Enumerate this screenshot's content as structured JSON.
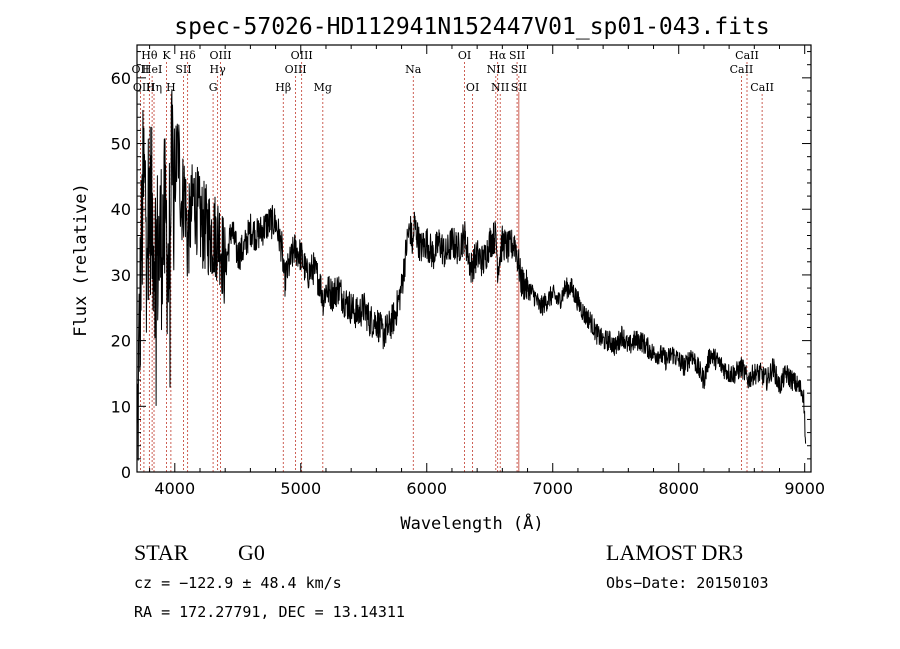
{
  "chart_data": {
    "type": "line",
    "title": "spec-57026-HD112941N152447V01_sp01-043.fits",
    "xlabel": "Wavelength (Å)",
    "ylabel": "Flux (relative)",
    "xlim": [
      3700,
      9050
    ],
    "ylim": [
      0,
      65
    ],
    "xticks": [
      4000,
      5000,
      6000,
      7000,
      8000,
      9000
    ],
    "yticks": [
      0,
      10,
      20,
      30,
      40,
      50,
      60
    ],
    "spectrum_trend": {
      "x": [
        3700,
        3720,
        3750,
        3780,
        3800,
        3830,
        3850,
        3880,
        3900,
        3930,
        3950,
        3970,
        4000,
        4030,
        4050,
        4080,
        4100,
        4150,
        4200,
        4250,
        4300,
        4350,
        4400,
        4450,
        4500,
        4550,
        4600,
        4650,
        4700,
        4750,
        4800,
        4850,
        4870,
        4900,
        4950,
        5000,
        5050,
        5100,
        5150,
        5180,
        5200,
        5250,
        5300,
        5350,
        5400,
        5450,
        5500,
        5550,
        5600,
        5650,
        5700,
        5750,
        5800,
        5850,
        5870,
        5890,
        5900,
        5950,
        6000,
        6050,
        6100,
        6150,
        6200,
        6250,
        6300,
        6350,
        6400,
        6450,
        6500,
        6550,
        6563,
        6600,
        6650,
        6700,
        6750,
        6800,
        6850,
        6900,
        6950,
        7000,
        7050,
        7100,
        7150,
        7200,
        7250,
        7300,
        7350,
        7400,
        7450,
        7500,
        7550,
        7600,
        7650,
        7700,
        7750,
        7800,
        7850,
        7900,
        7950,
        8000,
        8050,
        8100,
        8150,
        8200,
        8250,
        8300,
        8350,
        8400,
        8450,
        8500,
        8550,
        8600,
        8650,
        8700,
        8750,
        8800,
        8850,
        8900,
        8950,
        8990,
        9000,
        9010
      ],
      "y": [
        1,
        22,
        44,
        40,
        42,
        36,
        33,
        34,
        36,
        38,
        30,
        44,
        46,
        49,
        41,
        43,
        35,
        42,
        38,
        37,
        36,
        36,
        31,
        37,
        33,
        34,
        37,
        36,
        37,
        38,
        38,
        34,
        29,
        31,
        34,
        33,
        30,
        31,
        29,
        26,
        28,
        27,
        28,
        26,
        25,
        24,
        25,
        23,
        23,
        21,
        22,
        24,
        28,
        36,
        37,
        34,
        38,
        34,
        35,
        33,
        35,
        33,
        35,
        34,
        36,
        31,
        33,
        32,
        35,
        36,
        31,
        35,
        34,
        35,
        29,
        28,
        27,
        25,
        26,
        27,
        26,
        28,
        28,
        26,
        24,
        23,
        21,
        20,
        20,
        19,
        21,
        19,
        20,
        20,
        19,
        18,
        18,
        17,
        18,
        17,
        16,
        18,
        16,
        14,
        18,
        17,
        16,
        15,
        15,
        16,
        14,
        15,
        15,
        14,
        16,
        13,
        15,
        14,
        13,
        12,
        8,
        2
      ]
    },
    "spectral_lines": [
      {
        "name": "Hθ",
        "wavelength": 3798,
        "row": 1
      },
      {
        "name": "OII",
        "wavelength": 3727,
        "row": 2
      },
      {
        "name": "HeI",
        "wavelength": 3820,
        "row": 2
      },
      {
        "name": "OIII",
        "wavelength": 3755,
        "row": 3
      },
      {
        "name": "Hη",
        "wavelength": 3835,
        "row": 3
      },
      {
        "name": "K",
        "wavelength": 3934,
        "row": 1
      },
      {
        "name": "SII",
        "wavelength": 4069,
        "row": 2
      },
      {
        "name": "H",
        "wavelength": 3969,
        "row": 3
      },
      {
        "name": "Hδ",
        "wavelength": 4102,
        "row": 1
      },
      {
        "name": "OIII",
        "wavelength": 4363,
        "row": 1
      },
      {
        "name": "Hγ",
        "wavelength": 4340,
        "row": 2
      },
      {
        "name": "G",
        "wavelength": 4304,
        "row": 3
      },
      {
        "name": "OIII",
        "wavelength": 5007,
        "row": 1
      },
      {
        "name": "OIII",
        "wavelength": 4959,
        "row": 2
      },
      {
        "name": "Hβ",
        "wavelength": 4861,
        "row": 3
      },
      {
        "name": "Mg",
        "wavelength": 5175,
        "row": 3
      },
      {
        "name": "Na",
        "wavelength": 5893,
        "row": 2
      },
      {
        "name": "OI",
        "wavelength": 6300,
        "row": 1
      },
      {
        "name": "OI",
        "wavelength": 6364,
        "row": 3
      },
      {
        "name": "Hα",
        "wavelength": 6563,
        "row": 1
      },
      {
        "name": "SII",
        "wavelength": 6717,
        "row": 1
      },
      {
        "name": "NII",
        "wavelength": 6548,
        "row": 2
      },
      {
        "name": "SII",
        "wavelength": 6731,
        "row": 2
      },
      {
        "name": "NII",
        "wavelength": 6583,
        "row": 3
      },
      {
        "name": "SII",
        "wavelength": 6731,
        "row": 3
      },
      {
        "name": "CaII",
        "wavelength": 8542,
        "row": 1
      },
      {
        "name": "CaII",
        "wavelength": 8498,
        "row": 2
      },
      {
        "name": "CaII",
        "wavelength": 8662,
        "row": 3
      }
    ],
    "colors": {
      "spectrum": "#000000",
      "lines": "#c0392b",
      "axes": "#000000"
    }
  },
  "info": {
    "object_class": "STAR",
    "subclass": "G0",
    "survey": "LAMOST DR3",
    "cz": "cz = −122.9 ± 48.4 km/s",
    "obs_date": "Obs−Date: 20150103",
    "coords": "RA = 172.27791, DEC =  13.14311"
  }
}
